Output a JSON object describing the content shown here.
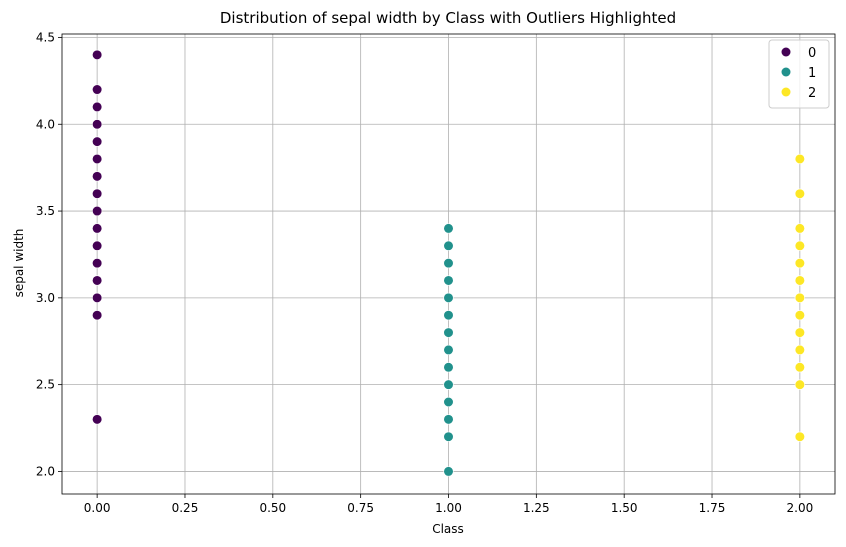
{
  "chart_data": {
    "type": "scatter",
    "title": "Distribution of sepal width by Class with Outliers Highlighted",
    "xlabel": "Class",
    "ylabel": "sepal width",
    "xlim": [
      -0.1,
      2.1
    ],
    "ylim": [
      1.87,
      4.52
    ],
    "xticks": [
      0.0,
      0.25,
      0.5,
      0.75,
      1.0,
      1.25,
      1.5,
      1.75,
      2.0
    ],
    "xtick_labels": [
      "0.00",
      "0.25",
      "0.50",
      "0.75",
      "1.00",
      "1.25",
      "1.50",
      "1.75",
      "2.00"
    ],
    "yticks": [
      2.0,
      2.5,
      3.0,
      3.5,
      4.0,
      4.5
    ],
    "ytick_labels": [
      "2.0",
      "2.5",
      "3.0",
      "3.5",
      "4.0",
      "4.5"
    ],
    "grid": true,
    "legend_position": "top-right",
    "series": [
      {
        "name": "0",
        "color": "#440154",
        "x": [
          0,
          0,
          0,
          0,
          0,
          0,
          0,
          0,
          0,
          0,
          0,
          0,
          0,
          0,
          0,
          0
        ],
        "y": [
          4.4,
          4.2,
          4.1,
          4.0,
          3.9,
          3.8,
          3.7,
          3.6,
          3.5,
          3.4,
          3.3,
          3.2,
          3.1,
          3.0,
          2.9,
          2.3
        ]
      },
      {
        "name": "1",
        "color": "#21918c",
        "x": [
          1,
          1,
          1,
          1,
          1,
          1,
          1,
          1,
          1,
          1,
          1,
          1,
          1,
          1,
          1
        ],
        "y": [
          3.4,
          3.3,
          3.2,
          3.1,
          3.0,
          2.9,
          2.8,
          2.7,
          2.6,
          2.5,
          2.4,
          2.3,
          2.2,
          2.0,
          2.5
        ]
      },
      {
        "name": "2",
        "color": "#fde725",
        "x": [
          2,
          2,
          2,
          2,
          2,
          2,
          2,
          2,
          2,
          2,
          2,
          2,
          2,
          2
        ],
        "y": [
          3.8,
          3.6,
          3.4,
          3.3,
          3.2,
          3.1,
          3.0,
          2.9,
          2.8,
          2.7,
          2.6,
          2.5,
          2.2,
          3.0
        ]
      }
    ]
  }
}
